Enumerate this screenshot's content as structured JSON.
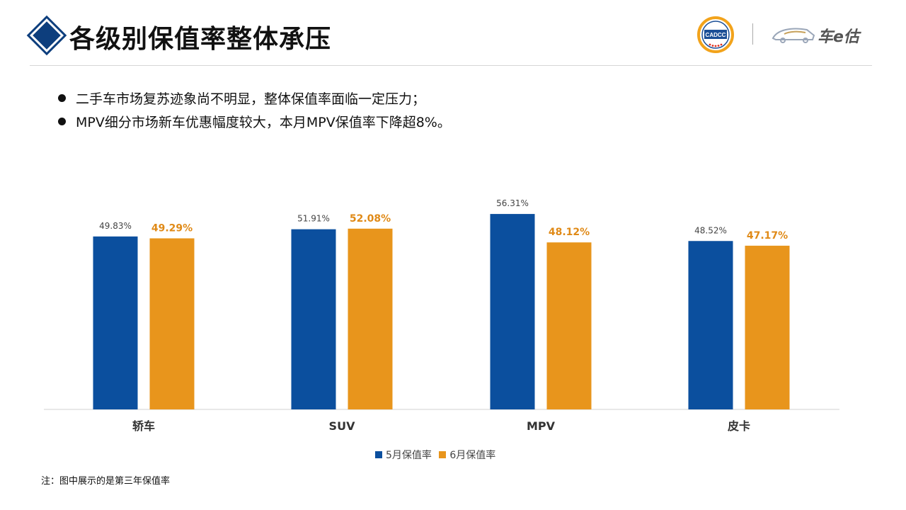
{
  "header": {
    "title": "各级别保值率整体承压",
    "logo_cadcc_text": "CADCC",
    "logo_brand_text": "车e估"
  },
  "bullets": [
    "二手车市场复苏迹象尚不明显，整体保值率面临一定压力；",
    "MPV细分市场新车优惠幅度较大，本月MPV保值率下降超8%。"
  ],
  "colors": {
    "title_diamond": "#0d3e7d",
    "may_series": "#0b4f9e",
    "june_series": "#e8951c",
    "june_label": "#e08a17"
  },
  "chart_data": {
    "type": "bar",
    "categories": [
      "轿车",
      "SUV",
      "MPV",
      "皮卡"
    ],
    "series": [
      {
        "name": "5月保值率",
        "values": [
          49.83,
          51.91,
          56.31,
          48.52
        ],
        "labels": [
          "49.83%",
          "51.91%",
          "56.31%",
          "48.52%"
        ]
      },
      {
        "name": "6月保值率",
        "values": [
          49.29,
          52.08,
          48.12,
          47.17
        ],
        "labels": [
          "49.29%",
          "52.08%",
          "48.12%",
          "47.17%"
        ]
      }
    ],
    "ylim": [
      0,
      60
    ],
    "legend_position": "bottom",
    "grid": false
  },
  "footnote": "注：图中展示的是第三年保值率"
}
